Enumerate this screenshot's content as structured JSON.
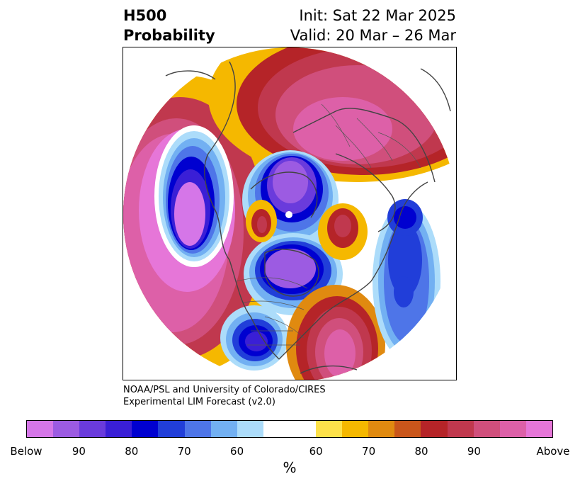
{
  "header": {
    "title_line1": "H500",
    "title_line2": "Probability",
    "init_text": "Init: Sat 22 Mar 2025",
    "valid_text": "Valid: 20 Mar – 26 Mar"
  },
  "credit": {
    "line1": "NOAA/PSL and University of Colorado/CIRES",
    "line2": "Experimental LIM Forecast (v2.0)"
  },
  "colorbar": {
    "unit": "%",
    "segments": [
      {
        "color": "#d576e8",
        "weight": 1
      },
      {
        "color": "#9c5be2",
        "weight": 1
      },
      {
        "color": "#6a3bdc",
        "weight": 1
      },
      {
        "color": "#3a1fd6",
        "weight": 1
      },
      {
        "color": "#0000d0",
        "weight": 1
      },
      {
        "color": "#213ed9",
        "weight": 1
      },
      {
        "color": "#4e75e8",
        "weight": 1
      },
      {
        "color": "#72b0f2",
        "weight": 1
      },
      {
        "color": "#acdcfa",
        "weight": 1
      },
      {
        "color": "#ffffff",
        "weight": 2
      },
      {
        "color": "#fde14a",
        "weight": 1
      },
      {
        "color": "#f5b800",
        "weight": 1
      },
      {
        "color": "#e08a10",
        "weight": 1
      },
      {
        "color": "#c9561b",
        "weight": 1
      },
      {
        "color": "#b52428",
        "weight": 1
      },
      {
        "color": "#c0384e",
        "weight": 1
      },
      {
        "color": "#d04f7c",
        "weight": 1
      },
      {
        "color": "#dd60a8",
        "weight": 1
      },
      {
        "color": "#e676d8",
        "weight": 1
      }
    ],
    "ticks": [
      "Below",
      "90",
      "80",
      "70",
      "60",
      "60",
      "70",
      "80",
      "90",
      "Above"
    ]
  },
  "map": {
    "colors": {
      "magenta": "#e676d8",
      "pink": "#dd60a8",
      "rose": "#d04f7c",
      "crimson": "#c0384e",
      "red": "#b52428",
      "orange": "#c9561b",
      "amber": "#e08a10",
      "gold": "#f5b800",
      "yellow": "#fde14a",
      "lightblue": "#acdcfa",
      "skyblue": "#72b0f2",
      "blue": "#4e75e8",
      "royal": "#213ed9",
      "navy": "#0000d0",
      "indigo": "#3a1fd6",
      "violet": "#6a3bdc",
      "purple": "#9c5be2",
      "lilac": "#d576e8",
      "coast": "#444444"
    }
  }
}
